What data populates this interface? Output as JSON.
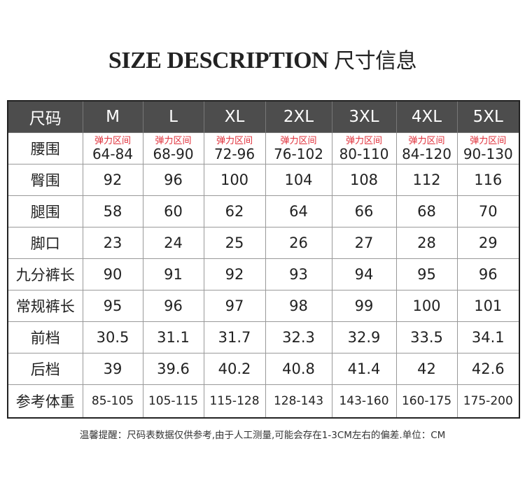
{
  "title": {
    "en": "SIZE DESCRIPTION",
    "cn": "尺寸信息"
  },
  "table": {
    "header_label": "尺码",
    "sizes": [
      "M",
      "L",
      "XL",
      "2XL",
      "3XL",
      "4XL",
      "5XL"
    ],
    "waist": {
      "label": "腰围",
      "note": "弹力区间",
      "values": [
        "64-84",
        "68-90",
        "72-96",
        "76-102",
        "80-110",
        "84-120",
        "90-130"
      ]
    },
    "rows": [
      {
        "label": "臀围",
        "values": [
          "92",
          "96",
          "100",
          "104",
          "108",
          "112",
          "116"
        ]
      },
      {
        "label": "腿围",
        "values": [
          "58",
          "60",
          "62",
          "64",
          "66",
          "68",
          "70"
        ]
      },
      {
        "label": "脚口",
        "values": [
          "23",
          "24",
          "25",
          "26",
          "27",
          "28",
          "29"
        ]
      },
      {
        "label": "九分裤长",
        "values": [
          "90",
          "91",
          "92",
          "93",
          "94",
          "95",
          "96"
        ]
      },
      {
        "label": "常规裤长",
        "values": [
          "95",
          "96",
          "97",
          "98",
          "99",
          "100",
          "101"
        ]
      },
      {
        "label": "前档",
        "values": [
          "30.5",
          "31.1",
          "31.7",
          "32.3",
          "32.9",
          "33.5",
          "34.1"
        ]
      },
      {
        "label": "后档",
        "values": [
          "39",
          "39.6",
          "40.2",
          "40.8",
          "41.4",
          "42",
          "42.6"
        ]
      }
    ],
    "weight": {
      "label": "参考体重",
      "values": [
        "85-105",
        "105-115",
        "115-128",
        "128-143",
        "143-160",
        "160-175",
        "175-200"
      ]
    }
  },
  "footer": "温馨提醒：尺码表数据仅供参考,由于人工测量,可能会存在1-3CM左右的偏差.单位：CM",
  "colors": {
    "header_bg": "#4d4d4d",
    "note": "#e0303a"
  }
}
